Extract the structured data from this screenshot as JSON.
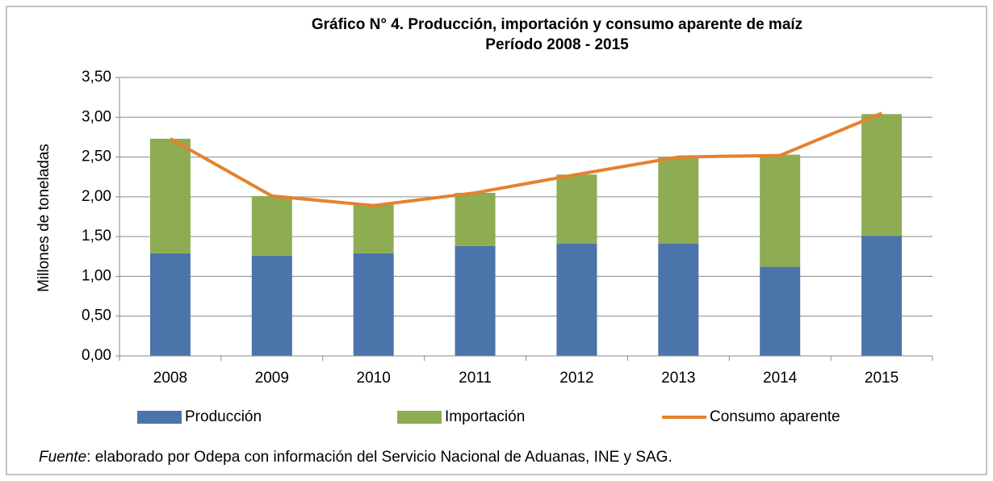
{
  "chart_data": {
    "type": "bar",
    "stacked": true,
    "title": "Gráfico N° 4. Producción, importación y consumo aparente de maíz",
    "subtitle": "Período 2008 - 2015",
    "y_label": "Millones de toneladas",
    "categories": [
      "2008",
      "2009",
      "2010",
      "2011",
      "2012",
      "2013",
      "2014",
      "2015"
    ],
    "series": [
      {
        "name": "Producción",
        "type": "bar",
        "color": "#4a74aa",
        "values": [
          1.29,
          1.26,
          1.29,
          1.38,
          1.41,
          1.41,
          1.12,
          1.51
        ]
      },
      {
        "name": "Importación",
        "type": "bar",
        "color": "#8eac52",
        "values": [
          1.44,
          0.75,
          0.62,
          0.67,
          0.87,
          1.09,
          1.41,
          1.53
        ]
      },
      {
        "name": "Consumo aparente",
        "type": "line",
        "color": "#e4822e",
        "values": [
          2.73,
          2.01,
          1.89,
          2.05,
          2.28,
          2.5,
          2.52,
          3.05
        ]
      }
    ],
    "ylim": [
      0,
      3.5
    ],
    "yticks": [
      {
        "value": 0,
        "label": "0,00"
      },
      {
        "value": 0.5,
        "label": "0,50"
      },
      {
        "value": 1,
        "label": "1,00"
      },
      {
        "value": 1.5,
        "label": "1,50"
      },
      {
        "value": 2,
        "label": "2,00"
      },
      {
        "value": 2.5,
        "label": "2,50"
      },
      {
        "value": 3,
        "label": "3,00"
      },
      {
        "value": 3.5,
        "label": "3,50"
      }
    ],
    "grid": true,
    "legend": "bottom",
    "source_label": "Fuente",
    "source_text": ": elaborado por Odepa con información del Servicio Nacional de Aduanas, INE y SAG."
  }
}
